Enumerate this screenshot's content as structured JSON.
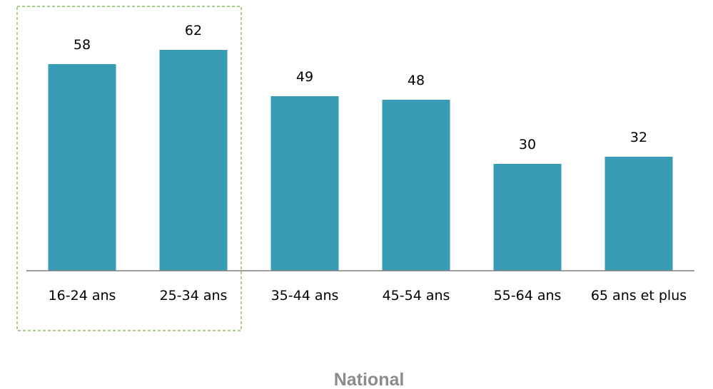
{
  "chart_data": {
    "type": "bar",
    "categories": [
      "16-24 ans",
      "25-34 ans",
      "35-44 ans",
      "45-54 ans",
      "55-64 ans",
      "65 ans et plus"
    ],
    "values": [
      58,
      62,
      49,
      48,
      30,
      32
    ],
    "highlighted_categories": [
      "16-24 ans",
      "25-34 ans"
    ],
    "ylim": [
      0,
      62
    ],
    "grid": false,
    "legend": "none",
    "footer_label": "National",
    "colors": {
      "bar": "#379cb4",
      "axis": "#7f7f7f",
      "highlight_box": "#70ad47",
      "footer_text": "#8c8c8c"
    }
  }
}
